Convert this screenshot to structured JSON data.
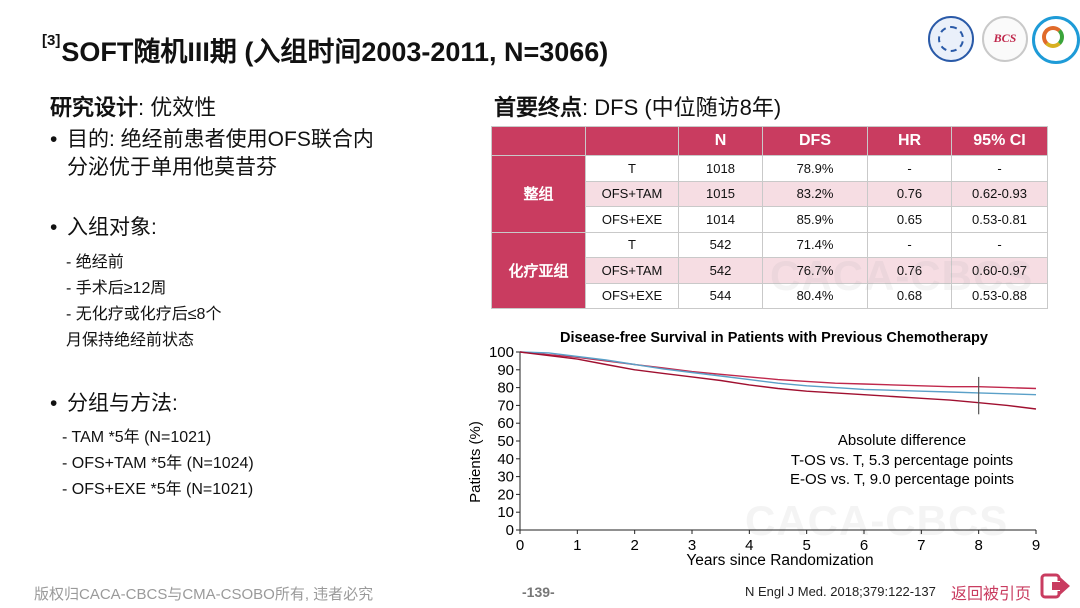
{
  "title": {
    "superscript": "[3]",
    "text": "SOFT随机III期 (入组时间2003-2011, N=3066)"
  },
  "logos": {
    "logo2_text": "BCS"
  },
  "design": {
    "heading_bold": "研究设计",
    "heading_rest": ": 优效性",
    "purpose_line1": "目的: 绝经前患者使用OFS联合内",
    "purpose_line2": "分泌优于单用他莫昔芬",
    "population_title": "入组对象:",
    "population_items": [
      "-  绝经前",
      "-  手术后≥12周",
      "- 无化疗或化疗后≤8个"
    ],
    "population_continuation": "月保持绝经前状态",
    "arms_title": "分组与方法:",
    "arms": [
      "-  TAM *5年 (N=1021)",
      "-  OFS+TAM *5年 (N=1024)",
      "-  OFS+EXE *5年 (N=1021)"
    ]
  },
  "endpoint": {
    "heading_bold": "首要终点",
    "heading_rest": ": DFS (中位随访8年)"
  },
  "table": {
    "headers": [
      "",
      "",
      "N",
      "DFS",
      "HR",
      "95% CI"
    ],
    "groups": [
      {
        "label": "整组",
        "rows": [
          [
            "T",
            "1018",
            "78.9%",
            "-",
            "-"
          ],
          [
            "OFS+TAM",
            "1015",
            "83.2%",
            "0.76",
            "0.62-0.93"
          ],
          [
            "OFS+EXE",
            "1014",
            "85.9%",
            "0.65",
            "0.53-0.81"
          ]
        ]
      },
      {
        "label": "化疗亚组",
        "rows": [
          [
            "T",
            "542",
            "71.4%",
            "-",
            "-"
          ],
          [
            "OFS+TAM",
            "542",
            "76.7%",
            "0.76",
            "0.60-0.97"
          ],
          [
            "OFS+EXE",
            "544",
            "80.4%",
            "0.68",
            "0.53-0.88"
          ]
        ]
      }
    ]
  },
  "chart_data": {
    "type": "line",
    "title": "Disease-free Survival in Patients with Previous Chemotherapy",
    "xlabel": "Years since Randomization",
    "ylabel": "Patients (%)",
    "xlim": [
      0,
      9
    ],
    "ylim": [
      0,
      100
    ],
    "xticks": [
      0,
      1,
      2,
      3,
      4,
      5,
      6,
      7,
      8,
      9
    ],
    "yticks": [
      0,
      10,
      20,
      30,
      40,
      50,
      60,
      70,
      80,
      90,
      100
    ],
    "x": [
      0,
      0.5,
      1,
      1.5,
      2,
      2.5,
      3,
      3.5,
      4,
      4.5,
      5,
      5.5,
      6,
      6.5,
      7,
      7.5,
      8,
      8.5,
      9
    ],
    "series": [
      {
        "color": "#c0284c",
        "values": [
          100,
          98.5,
          97,
          95,
          93,
          91,
          89,
          87.5,
          86,
          84.5,
          83.5,
          82.5,
          82,
          81.5,
          81,
          80.5,
          80.5,
          80,
          79.5
        ]
      },
      {
        "color": "#5aa0c8",
        "values": [
          100,
          99.5,
          97.5,
          95.5,
          93,
          90.5,
          88.5,
          86.5,
          84.5,
          82.5,
          81,
          80,
          79,
          78.5,
          78,
          77.5,
          77,
          76.5,
          76
        ]
      },
      {
        "color": "#a01030",
        "values": [
          100,
          98,
          96,
          93,
          90,
          88,
          86,
          84,
          81.5,
          79.5,
          78,
          77,
          76,
          75,
          74,
          73,
          71.5,
          70,
          68
        ]
      }
    ],
    "censor_mark_x": 8,
    "annotation": [
      "Absolute difference",
      "T-OS vs. T, 5.3 percentage points",
      "E-OS vs. T, 9.0 percentage points"
    ],
    "grid": false
  },
  "watermarks": [
    "CACA-CBCS",
    "CACA-CBCS"
  ],
  "footer": {
    "copyright": "版权归CACA-CBCS与CMA-CSOBO所有, 违者必究",
    "page": "-139-",
    "reference": "N Engl J Med. 2018;379:122-137",
    "back_link": "返回被引页"
  }
}
